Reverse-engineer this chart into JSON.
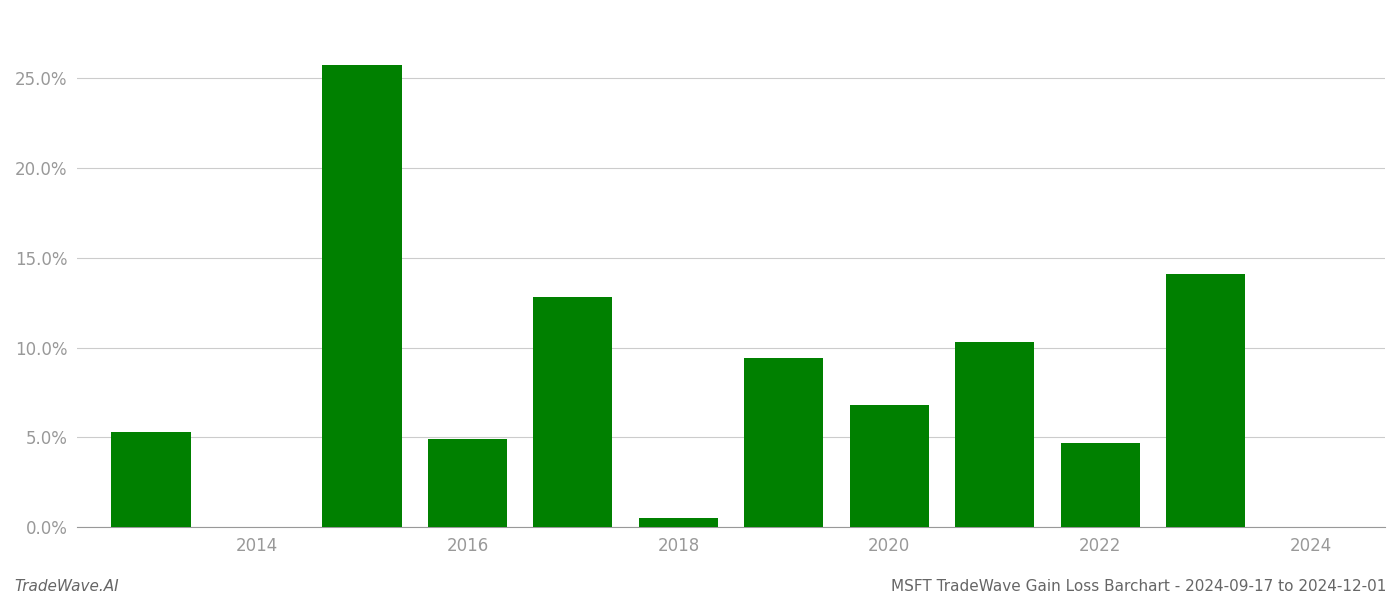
{
  "years": [
    2013,
    2015,
    2016,
    2017,
    2018,
    2019,
    2020,
    2021,
    2022,
    2023
  ],
  "values": [
    0.053,
    0.257,
    0.049,
    0.128,
    0.005,
    0.094,
    0.068,
    0.103,
    0.047,
    0.141
  ],
  "bar_color": "#008000",
  "background_color": "#ffffff",
  "grid_color": "#cccccc",
  "axis_label_color": "#999999",
  "footer_left": "TradeWave.AI",
  "footer_right": "MSFT TradeWave Gain Loss Barchart - 2024-09-17 to 2024-12-01",
  "xtick_positions": [
    2014,
    2016,
    2018,
    2020,
    2022,
    2024
  ],
  "xtick_labels": [
    "2014",
    "2016",
    "2018",
    "2020",
    "2022",
    "2024"
  ],
  "ylim": [
    0,
    0.285
  ],
  "ytick_values": [
    0.0,
    0.05,
    0.1,
    0.15,
    0.2,
    0.25
  ],
  "ytick_labels": [
    "0.0%",
    "5.0%",
    "10.0%",
    "15.0%",
    "20.0%",
    "25.0%"
  ],
  "bar_width": 0.75,
  "xlim_left": 2012.3,
  "xlim_right": 2024.7,
  "figsize": [
    14.0,
    6.0
  ],
  "dpi": 100,
  "footer_fontsize": 11,
  "tick_fontsize": 12
}
